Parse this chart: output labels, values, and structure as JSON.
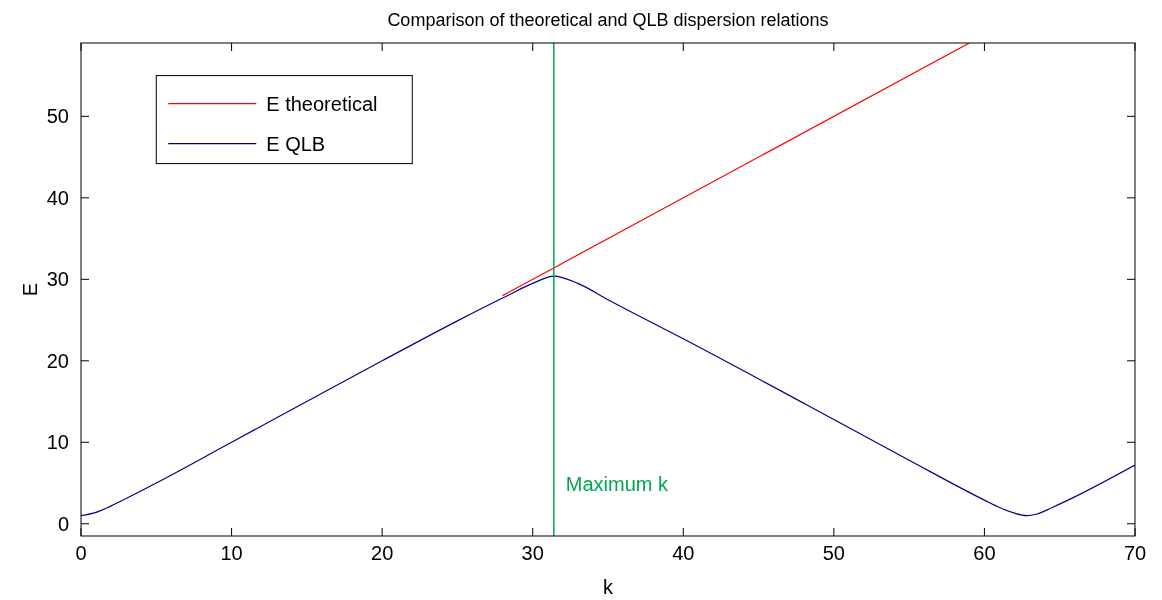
{
  "chart_data": {
    "type": "line",
    "title": "Comparison of theoretical and QLB dispersion relations",
    "xlabel": "k",
    "ylabel": "E",
    "xlim": [
      0,
      70
    ],
    "ylim": [
      -1.5,
      59
    ],
    "xticks": [
      0,
      10,
      20,
      30,
      40,
      50,
      60,
      70
    ],
    "yticks": [
      0,
      10,
      20,
      30,
      40,
      50
    ],
    "grid": false,
    "legend": "top left",
    "line_style": "solid",
    "series": [
      {
        "name": "E theoretical",
        "color": "#ff0000",
        "x": [
          28,
          31.4,
          59
        ],
        "values": [
          28,
          31.4,
          59
        ]
      },
      {
        "name": "E QLB",
        "color": "#00008b",
        "x": [
          0,
          1,
          2,
          3,
          5,
          10,
          20,
          25,
          28,
          30,
          31.4,
          33,
          35,
          40,
          50,
          55,
          60,
          61,
          62,
          62.8,
          63.5,
          64.5,
          66,
          70
        ],
        "values": [
          1,
          1.4,
          2.2,
          3.1,
          5,
          10,
          20,
          24.9,
          27.7,
          29.5,
          30.4,
          29.5,
          27.5,
          22.7,
          12.8,
          7.8,
          2.9,
          2,
          1.3,
          1,
          1.2,
          2,
          3.3,
          7.2
        ]
      }
    ],
    "ref_lines": [
      {
        "axis": "x",
        "value": 31.4,
        "label": "Maximum k",
        "color": "#00a651"
      }
    ]
  }
}
